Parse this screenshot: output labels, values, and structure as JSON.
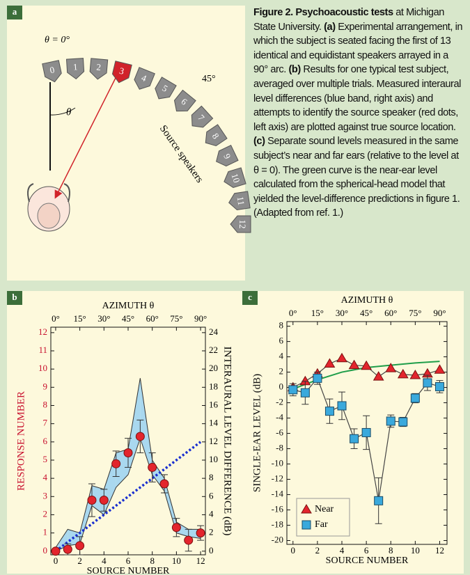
{
  "figure_a": {
    "label": "a",
    "theta0": "θ = 0°",
    "angle_45": "45°",
    "theta": "θ",
    "source_speakers": "Source speakers",
    "speakers": [
      "0",
      "1",
      "2",
      "3",
      "4",
      "5",
      "6",
      "7",
      "8",
      "9",
      "10",
      "11",
      "12"
    ]
  },
  "caption": [
    {
      "text": "Figure 2. Psychoacoustic tests",
      "bold": true
    },
    {
      "text": " at Michigan State University. ",
      "bold": false
    },
    {
      "text": "(a)",
      "bold": true
    },
    {
      "text": " Experimental arrangement, in which the subject is seated facing the first of 13 identical and equidistant speakers arrayed in a 90° arc. ",
      "bold": false
    },
    {
      "text": "(b)",
      "bold": true
    },
    {
      "text": " Results for one typical test subject, averaged over multiple trials. Measured interaural level differences (blue band, right axis) and attempts to identify the source speaker (red dots, left axis) are plotted against true source location. ",
      "bold": false
    },
    {
      "text": "(c)",
      "bold": true
    },
    {
      "text": " Separate sound levels measured in the same subject’s near and far ears (relative to the level at θ = 0). The green curve is the near-ear level calculated from the spherical-head model that yielded the level-difference predictions in figure 1. (Adapted from ref. 1.)",
      "bold": false
    }
  ],
  "chart_data": [
    {
      "type": "scatter",
      "label": "b",
      "top_axis_title": "AZIMUTH θ",
      "xlabel": "SOURCE NUMBER",
      "ylabel": "RESPONSE NUMBER",
      "ylabel_color": "#c8102e",
      "y2label": "INTERAURAL LEVEL DIFFERENCE (dB)",
      "x": [
        0,
        1,
        2,
        3,
        4,
        5,
        6,
        7,
        8,
        9,
        10,
        11,
        12
      ],
      "xlim": [
        -0.4,
        12.4
      ],
      "xticks": [
        0,
        2,
        4,
        6,
        8,
        10,
        12
      ],
      "top_xticks": [
        {
          "value": 0,
          "label": "0°"
        },
        {
          "value": 2,
          "label": "15°"
        },
        {
          "value": 4,
          "label": "30°"
        },
        {
          "value": 6,
          "label": "45°"
        },
        {
          "value": 8,
          "label": "60°"
        },
        {
          "value": 10,
          "label": "75°"
        },
        {
          "value": 12,
          "label": "90°"
        }
      ],
      "ylim": [
        -0.2,
        12.3
      ],
      "yticks": [
        0,
        1,
        2,
        3,
        4,
        5,
        6,
        7,
        8,
        9,
        10,
        11,
        12
      ],
      "y2lim": [
        -0.4,
        24.6
      ],
      "y2ticks": [
        0,
        2,
        4,
        6,
        8,
        10,
        12,
        14,
        16,
        18,
        20,
        22,
        24
      ],
      "series": [
        {
          "mark": "band",
          "axis": "y2",
          "color": "#a9d8ef",
          "low": [
            0,
            0.6,
            0.8,
            5,
            4,
            7,
            8.4,
            12.4,
            8.4,
            6.6,
            2,
            1.6,
            1.4
          ],
          "high": [
            0.4,
            2.4,
            2,
            7.2,
            6.8,
            10.8,
            11.2,
            19,
            10,
            8,
            3.2,
            2.4,
            2.4
          ]
        },
        {
          "mark": "dotted",
          "axis": "y2",
          "color": "#1a2fd0",
          "x": [
            0,
            12
          ],
          "values": [
            0,
            12
          ]
        },
        {
          "mark": "circle",
          "color": "#e3252d",
          "values": [
            0,
            0.1,
            0.3,
            2.8,
            2.8,
            4.8,
            5.4,
            6.3,
            4.6,
            3.7,
            1.3,
            0.6,
            1.0
          ],
          "errors": [
            0.1,
            0.3,
            0.5,
            0.9,
            0.6,
            0.7,
            0.8,
            0.9,
            0.8,
            0.5,
            0.5,
            0.6,
            0.4
          ]
        }
      ]
    },
    {
      "type": "scatter",
      "label": "c",
      "top_axis_title": "AZIMUTH θ",
      "xlabel": "SOURCE NUMBER",
      "ylabel": "SINGLE-EAR LEVEL (dB)",
      "legend": "lower-left",
      "x": [
        0,
        1,
        2,
        3,
        4,
        5,
        6,
        7,
        8,
        9,
        10,
        11,
        12
      ],
      "xlim": [
        -0.5,
        12.6
      ],
      "xticks": [
        0,
        2,
        4,
        6,
        8,
        10,
        12
      ],
      "top_xticks": [
        {
          "value": 0,
          "label": "0°"
        },
        {
          "value": 2,
          "label": "15°"
        },
        {
          "value": 4,
          "label": "30°"
        },
        {
          "value": 6,
          "label": "45°"
        },
        {
          "value": 8,
          "label": "60°"
        },
        {
          "value": 10,
          "label": "75°"
        },
        {
          "value": 12,
          "label": "90°"
        }
      ],
      "ylim": [
        -20.5,
        8.6
      ],
      "yticks": [
        8,
        6,
        4,
        2,
        0,
        -2,
        -4,
        -6,
        -8,
        -10,
        -12,
        -14,
        -16,
        -18,
        -20
      ],
      "series": [
        {
          "mark": "line",
          "color": "#1f9e4a",
          "x": [
            0,
            2,
            4,
            6,
            8,
            10,
            12
          ],
          "values": [
            -0.2,
            1,
            2,
            2.6,
            2.9,
            3.2,
            3.4
          ]
        },
        {
          "name": "Near",
          "mark": "triangle",
          "connect": "#444",
          "color": "#e3252d",
          "values": [
            0,
            0.8,
            1.8,
            3.1,
            3.8,
            2.9,
            2.8,
            1.4,
            2.5,
            1.7,
            1.6,
            1.8,
            2.3
          ]
        },
        {
          "name": "Far",
          "mark": "square",
          "connect": "#444",
          "color": "#3aa9dc",
          "values": [
            -0.3,
            -0.7,
            1.2,
            -3.1,
            -2.4,
            -6.7,
            -5.9,
            -14.8,
            -4.4,
            -4.5,
            -1.4,
            0.6,
            0.1
          ],
          "errors": [
            0.8,
            1.5,
            0.8,
            1.6,
            1.8,
            1.3,
            2.2,
            3,
            0.8,
            0.6,
            0.6,
            1,
            0.8
          ]
        }
      ]
    }
  ]
}
